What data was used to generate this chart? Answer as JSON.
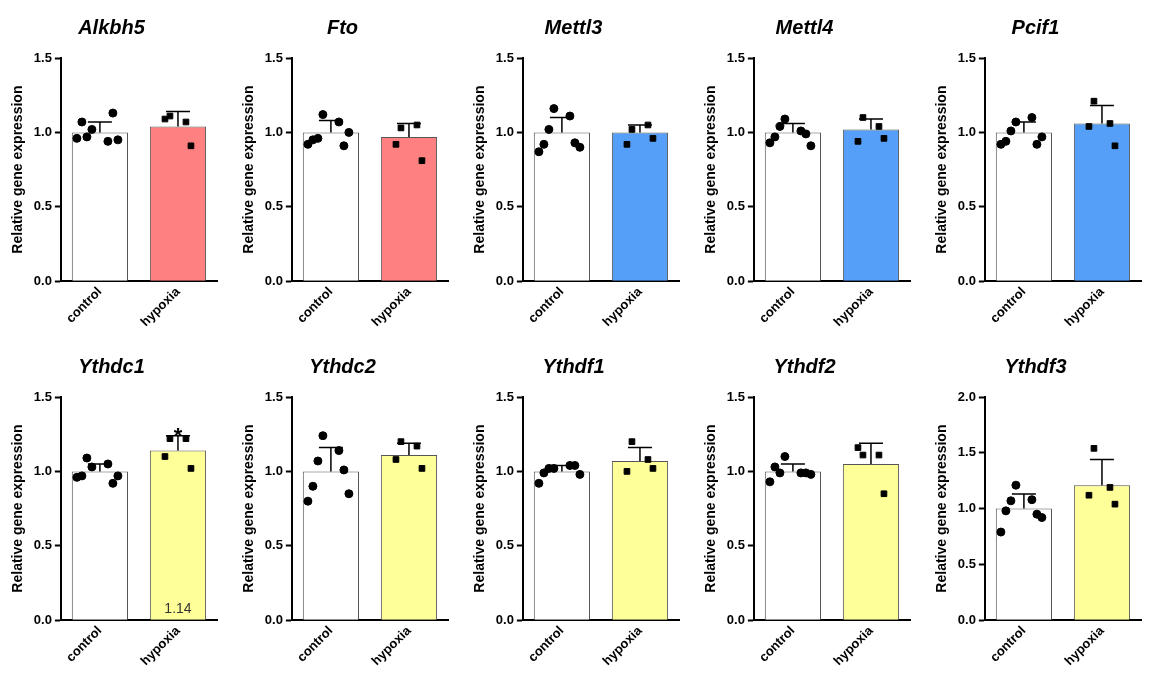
{
  "chart_data": [
    {
      "type": "bar",
      "title": "Alkbh5",
      "ylabel": "Relative gene expression",
      "categories": [
        "control",
        "hypoxia"
      ],
      "ylim": [
        0,
        1.5
      ],
      "yticks": [
        {
          "value": 0,
          "label": "0.0"
        },
        {
          "value": 0.5,
          "label": "0.5"
        },
        {
          "value": 1,
          "label": "1.0"
        },
        {
          "value": 1.5,
          "label": "1.5"
        }
      ],
      "legend": false,
      "grid": false,
      "series": [
        {
          "type": "bar",
          "values": [
            1.0,
            1.04
          ],
          "colors": [
            "#ffffff",
            "#ff8080"
          ],
          "errors": [
            [
              1.0,
              1.07
            ],
            [
              1.04,
              1.14
            ]
          ]
        },
        {
          "type": "scatter",
          "marker": "circle",
          "color": "#000000",
          "x": [
            "control",
            "control",
            "control",
            "control",
            "control",
            "control",
            "control"
          ],
          "values": [
            1.02,
            0.94,
            0.97,
            1.13,
            1.07,
            0.95,
            0.96
          ]
        },
        {
          "type": "scatter",
          "marker": "square",
          "color": "#000000",
          "x": [
            "hypoxia",
            "hypoxia",
            "hypoxia",
            "hypoxia"
          ],
          "values": [
            1.11,
            1.07,
            1.09,
            0.91
          ]
        }
      ]
    },
    {
      "type": "bar",
      "title": "Fto",
      "ylabel": "Relative gene expression",
      "categories": [
        "control",
        "hypoxia"
      ],
      "ylim": [
        0,
        1.5
      ],
      "yticks": [
        {
          "value": 0,
          "label": "0.0"
        },
        {
          "value": 0.5,
          "label": "0.5"
        },
        {
          "value": 1,
          "label": "1.0"
        },
        {
          "value": 1.5,
          "label": "1.5"
        }
      ],
      "legend": false,
      "grid": false,
      "series": [
        {
          "type": "bar",
          "values": [
            1.0,
            0.97
          ],
          "colors": [
            "#ffffff",
            "#ff8080"
          ],
          "errors": [
            [
              1.0,
              1.08
            ],
            [
              0.97,
              1.06
            ]
          ]
        },
        {
          "type": "scatter",
          "marker": "circle",
          "color": "#000000",
          "x": [
            "control",
            "control",
            "control",
            "control",
            "control",
            "control",
            "control"
          ],
          "values": [
            1.12,
            1.07,
            0.96,
            0.91,
            0.95,
            1.0,
            0.92
          ]
        },
        {
          "type": "scatter",
          "marker": "square",
          "color": "#000000",
          "x": [
            "hypoxia",
            "hypoxia",
            "hypoxia",
            "hypoxia"
          ],
          "values": [
            1.03,
            1.05,
            0.92,
            0.81
          ]
        }
      ]
    },
    {
      "type": "bar",
      "title": "Mettl3",
      "ylabel": "Relative gene expression",
      "categories": [
        "control",
        "hypoxia"
      ],
      "ylim": [
        0,
        1.5
      ],
      "yticks": [
        {
          "value": 0,
          "label": "0.0"
        },
        {
          "value": 0.5,
          "label": "0.5"
        },
        {
          "value": 1,
          "label": "1.0"
        },
        {
          "value": 1.5,
          "label": "1.5"
        }
      ],
      "legend": false,
      "grid": false,
      "series": [
        {
          "type": "bar",
          "values": [
            1.0,
            1.0
          ],
          "colors": [
            "#ffffff",
            "#559ff8"
          ],
          "errors": [
            [
              1.0,
              1.1
            ],
            [
              1.0,
              1.05
            ]
          ]
        },
        {
          "type": "scatter",
          "marker": "circle",
          "color": "#000000",
          "x": [
            "control",
            "control",
            "control",
            "control",
            "control",
            "control",
            "control"
          ],
          "values": [
            1.16,
            1.11,
            1.02,
            0.93,
            0.92,
            0.9,
            0.87
          ]
        },
        {
          "type": "scatter",
          "marker": "square",
          "color": "#000000",
          "x": [
            "hypoxia",
            "hypoxia",
            "hypoxia",
            "hypoxia"
          ],
          "values": [
            1.02,
            1.05,
            0.92,
            0.96
          ]
        }
      ]
    },
    {
      "type": "bar",
      "title": "Mettl4",
      "ylabel": "Relative gene expression",
      "categories": [
        "control",
        "hypoxia"
      ],
      "ylim": [
        0,
        1.5
      ],
      "yticks": [
        {
          "value": 0,
          "label": "0.0"
        },
        {
          "value": 0.5,
          "label": "0.5"
        },
        {
          "value": 1,
          "label": "1.0"
        },
        {
          "value": 1.5,
          "label": "1.5"
        }
      ],
      "legend": false,
      "grid": false,
      "series": [
        {
          "type": "bar",
          "values": [
            1.0,
            1.02
          ],
          "colors": [
            "#ffffff",
            "#559ff8"
          ],
          "errors": [
            [
              1.0,
              1.06
            ],
            [
              1.02,
              1.09
            ]
          ]
        },
        {
          "type": "scatter",
          "marker": "circle",
          "color": "#000000",
          "x": [
            "control",
            "control",
            "control",
            "control",
            "control",
            "control",
            "control"
          ],
          "values": [
            1.09,
            1.01,
            1.04,
            0.99,
            0.97,
            0.91,
            0.93
          ]
        },
        {
          "type": "scatter",
          "marker": "square",
          "color": "#000000",
          "x": [
            "hypoxia",
            "hypoxia",
            "hypoxia",
            "hypoxia"
          ],
          "values": [
            1.1,
            1.04,
            0.94,
            0.96
          ]
        }
      ]
    },
    {
      "type": "bar",
      "title": "Pcif1",
      "ylabel": "Relative gene expression",
      "categories": [
        "control",
        "hypoxia"
      ],
      "ylim": [
        0,
        1.5
      ],
      "yticks": [
        {
          "value": 0,
          "label": "0.0"
        },
        {
          "value": 0.5,
          "label": "0.5"
        },
        {
          "value": 1,
          "label": "1.0"
        },
        {
          "value": 1.5,
          "label": "1.5"
        }
      ],
      "legend": false,
      "grid": false,
      "series": [
        {
          "type": "bar",
          "values": [
            1.0,
            1.06
          ],
          "colors": [
            "#ffffff",
            "#559ff8"
          ],
          "errors": [
            [
              1.0,
              1.07
            ],
            [
              1.06,
              1.18
            ]
          ]
        },
        {
          "type": "scatter",
          "marker": "circle",
          "color": "#000000",
          "x": [
            "control",
            "control",
            "control",
            "control",
            "control",
            "control",
            "control"
          ],
          "values": [
            1.07,
            1.1,
            1.01,
            0.92,
            0.94,
            0.97,
            0.92
          ]
        },
        {
          "type": "scatter",
          "marker": "square",
          "color": "#000000",
          "x": [
            "hypoxia",
            "hypoxia",
            "hypoxia",
            "hypoxia"
          ],
          "values": [
            1.21,
            1.06,
            1.04,
            0.91
          ]
        }
      ]
    },
    {
      "type": "bar",
      "title": "Ythdc1",
      "ylabel": "Relative gene expression",
      "categories": [
        "control",
        "hypoxia"
      ],
      "ylim": [
        0,
        1.5
      ],
      "yticks": [
        {
          "value": 0,
          "label": "0.0"
        },
        {
          "value": 0.5,
          "label": "0.5"
        },
        {
          "value": 1,
          "label": "1.0"
        },
        {
          "value": 1.5,
          "label": "1.5"
        }
      ],
      "legend": false,
      "grid": false,
      "annotations": [
        {
          "text": "*",
          "x": "hypoxia",
          "y": 1.27
        }
      ],
      "series": [
        {
          "type": "bar",
          "values": [
            1.0,
            1.14
          ],
          "value_labels": [
            null,
            "1.14"
          ],
          "colors": [
            "#ffffff",
            "#ffff99"
          ],
          "errors": [
            [
              1.0,
              1.05
            ],
            [
              1.14,
              1.24
            ]
          ]
        },
        {
          "type": "scatter",
          "marker": "circle",
          "color": "#000000",
          "x": [
            "control",
            "control",
            "control",
            "control",
            "control",
            "control",
            "control"
          ],
          "values": [
            1.03,
            1.05,
            1.09,
            0.92,
            0.97,
            0.97,
            0.96
          ]
        },
        {
          "type": "scatter",
          "marker": "square",
          "color": "#000000",
          "x": [
            "hypoxia",
            "hypoxia",
            "hypoxia",
            "hypoxia"
          ],
          "values": [
            1.22,
            1.22,
            1.1,
            1.02
          ]
        }
      ]
    },
    {
      "type": "bar",
      "title": "Ythdc2",
      "ylabel": "Relative gene expression",
      "categories": [
        "control",
        "hypoxia"
      ],
      "ylim": [
        0,
        1.5
      ],
      "yticks": [
        {
          "value": 0,
          "label": "0.0"
        },
        {
          "value": 0.5,
          "label": "0.5"
        },
        {
          "value": 1,
          "label": "1.0"
        },
        {
          "value": 1.5,
          "label": "1.5"
        }
      ],
      "legend": false,
      "grid": false,
      "series": [
        {
          "type": "bar",
          "values": [
            1.0,
            1.11
          ],
          "colors": [
            "#ffffff",
            "#ffff99"
          ],
          "errors": [
            [
              1.0,
              1.16
            ],
            [
              1.11,
              1.19
            ]
          ]
        },
        {
          "type": "scatter",
          "marker": "circle",
          "color": "#000000",
          "x": [
            "control",
            "control",
            "control",
            "control",
            "control",
            "control",
            "control"
          ],
          "values": [
            1.24,
            1.14,
            1.07,
            1.01,
            0.9,
            0.85,
            0.8
          ]
        },
        {
          "type": "scatter",
          "marker": "square",
          "color": "#000000",
          "x": [
            "hypoxia",
            "hypoxia",
            "hypoxia",
            "hypoxia"
          ],
          "values": [
            1.2,
            1.17,
            1.08,
            1.02
          ]
        }
      ]
    },
    {
      "type": "bar",
      "title": "Ythdf1",
      "ylabel": "Relative gene expression",
      "categories": [
        "control",
        "hypoxia"
      ],
      "ylim": [
        0,
        1.5
      ],
      "yticks": [
        {
          "value": 0,
          "label": "0.0"
        },
        {
          "value": 0.5,
          "label": "0.5"
        },
        {
          "value": 1,
          "label": "1.0"
        },
        {
          "value": 1.5,
          "label": "1.5"
        }
      ],
      "legend": false,
      "grid": false,
      "series": [
        {
          "type": "bar",
          "values": [
            1.0,
            1.07
          ],
          "colors": [
            "#ffffff",
            "#ffff99"
          ],
          "errors": [
            [
              1.0,
              1.04
            ],
            [
              1.07,
              1.16
            ]
          ]
        },
        {
          "type": "scatter",
          "marker": "circle",
          "color": "#000000",
          "x": [
            "control",
            "control",
            "control",
            "control",
            "control",
            "control",
            "control"
          ],
          "values": [
            1.02,
            1.04,
            1.02,
            1.04,
            0.99,
            0.98,
            0.92
          ]
        },
        {
          "type": "scatter",
          "marker": "square",
          "color": "#000000",
          "x": [
            "hypoxia",
            "hypoxia",
            "hypoxia",
            "hypoxia"
          ],
          "values": [
            1.2,
            1.08,
            1.0,
            1.02
          ]
        }
      ]
    },
    {
      "type": "bar",
      "title": "Ythdf2",
      "ylabel": "Relative gene expression",
      "categories": [
        "control",
        "hypoxia"
      ],
      "ylim": [
        0,
        1.5
      ],
      "yticks": [
        {
          "value": 0,
          "label": "0.0"
        },
        {
          "value": 0.5,
          "label": "0.5"
        },
        {
          "value": 1,
          "label": "1.0"
        },
        {
          "value": 1.5,
          "label": "1.5"
        }
      ],
      "legend": false,
      "grid": false,
      "series": [
        {
          "type": "bar",
          "values": [
            1.0,
            1.05
          ],
          "colors": [
            "#ffffff",
            "#ffff99"
          ],
          "errors": [
            [
              1.0,
              1.05
            ],
            [
              1.05,
              1.19
            ]
          ]
        },
        {
          "type": "scatter",
          "marker": "circle",
          "color": "#000000",
          "x": [
            "control",
            "control",
            "control",
            "control",
            "control",
            "control",
            "control"
          ],
          "values": [
            1.1,
            0.99,
            0.99,
            0.99,
            1.03,
            0.98,
            0.93
          ]
        },
        {
          "type": "scatter",
          "marker": "square",
          "color": "#000000",
          "x": [
            "hypoxia",
            "hypoxia",
            "hypoxia",
            "hypoxia"
          ],
          "values": [
            1.11,
            1.11,
            1.16,
            0.85
          ]
        }
      ]
    },
    {
      "type": "bar",
      "title": "Ythdf3",
      "ylabel": "Relative gene expression",
      "categories": [
        "control",
        "hypoxia"
      ],
      "ylim": [
        0,
        2
      ],
      "yticks": [
        {
          "value": 0,
          "label": "0.0"
        },
        {
          "value": 0.5,
          "label": "0.5"
        },
        {
          "value": 1,
          "label": "1.0"
        },
        {
          "value": 1.5,
          "label": "1.5"
        },
        {
          "value": 2,
          "label": "2.0"
        }
      ],
      "legend": false,
      "grid": false,
      "series": [
        {
          "type": "bar",
          "values": [
            1.0,
            1.21
          ],
          "colors": [
            "#ffffff",
            "#ffff99"
          ],
          "errors": [
            [
              1.0,
              1.13
            ],
            [
              1.21,
              1.44
            ]
          ]
        },
        {
          "type": "scatter",
          "marker": "circle",
          "color": "#000000",
          "x": [
            "control",
            "control",
            "control",
            "control",
            "control",
            "control",
            "control"
          ],
          "values": [
            1.21,
            1.08,
            1.07,
            0.95,
            0.98,
            0.92,
            0.79
          ]
        },
        {
          "type": "scatter",
          "marker": "square",
          "color": "#000000",
          "x": [
            "hypoxia",
            "hypoxia",
            "hypoxia",
            "hypoxia"
          ],
          "values": [
            1.54,
            1.19,
            1.12,
            1.04
          ]
        }
      ]
    }
  ]
}
